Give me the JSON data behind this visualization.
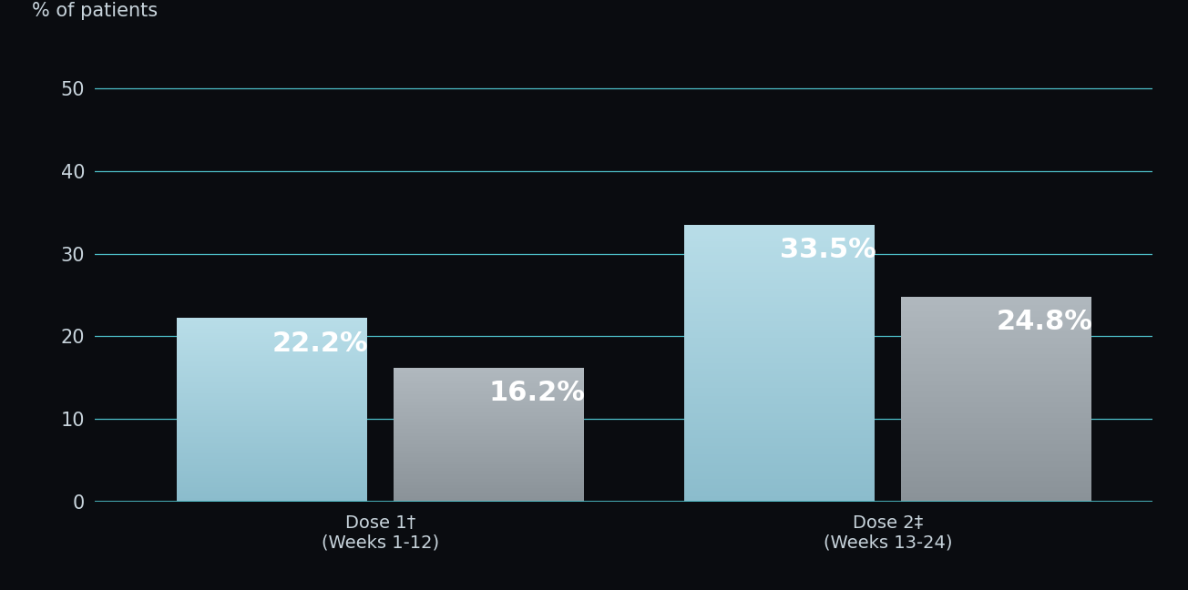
{
  "groups": [
    "Dose 1†\n(Weeks 1-12)",
    "Dose 2‡\n(Weeks 13-24)"
  ],
  "vyepti_values": [
    22.2,
    33.5
  ],
  "placebo_values": [
    16.2,
    24.8
  ],
  "vyepti_color_top": "#b8dde8",
  "vyepti_color_bottom": "#8bbccc",
  "placebo_color_top": "#b0b8be",
  "placebo_color_bottom": "#8a9298",
  "background_color": "#0a0c10",
  "ylabel": "% of patients",
  "ylim": [
    0,
    55
  ],
  "yticks": [
    0,
    10,
    20,
    30,
    40,
    50
  ],
  "grid_color": "#4dbfc8",
  "bar_width": 0.18,
  "label_fontsize": 22,
  "axis_label_fontsize": 15,
  "tick_fontsize": 15,
  "xtick_fontsize": 14,
  "group_centers": [
    0.32,
    0.8
  ],
  "xlim": [
    0.05,
    1.05
  ]
}
